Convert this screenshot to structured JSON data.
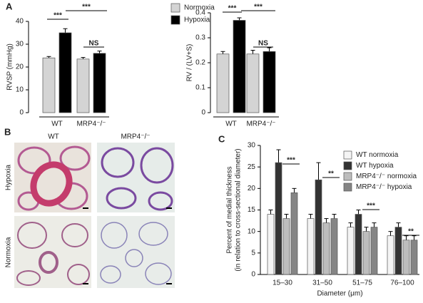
{
  "panel_labels": [
    "A",
    "B",
    "C"
  ],
  "histology": {
    "columns": [
      "WT",
      "MRP4⁻/⁻"
    ],
    "rows": [
      "Hypoxia",
      "Normoxia"
    ]
  },
  "chart_data": [
    {
      "type": "bar",
      "ylabel": "RVSP (mmHg)",
      "categories": [
        "WT",
        "MRP4⁻/⁻"
      ],
      "series": [
        {
          "name": "Normoxia",
          "color": "#d4d4d4",
          "values": [
            24,
            23.5
          ],
          "errors": [
            0.6,
            0.7
          ]
        },
        {
          "name": "Hypoxia",
          "color": "#000000",
          "values": [
            35,
            26
          ],
          "errors": [
            1.8,
            1.0
          ]
        }
      ],
      "ylim": [
        0,
        40
      ],
      "yticks": [
        0,
        10,
        20,
        30,
        40
      ],
      "annotations": [
        "***",
        "***",
        "NS"
      ]
    },
    {
      "type": "bar",
      "ylabel": "RV / (LV+S)",
      "categories": [
        "WT",
        "MRP4⁻/⁻"
      ],
      "series": [
        {
          "color": "#d4d4d4",
          "values": [
            0.235,
            0.235
          ],
          "errors": [
            0.01,
            0.015
          ]
        },
        {
          "color": "#000000",
          "values": [
            0.37,
            0.245
          ],
          "errors": [
            0.01,
            0.015
          ]
        }
      ],
      "ylim": [
        0,
        0.4
      ],
      "yticks": [
        0,
        0.1,
        0.2,
        0.3,
        0.4
      ],
      "annotations": [
        "***",
        "***",
        "NS"
      ]
    },
    {
      "type": "bar",
      "ylabel": [
        "Percent of medial thickness",
        "(in relation to cross-sectional diameter)"
      ],
      "xlabel": "Diameter (μm)",
      "categories": [
        "15–30",
        "31–50",
        "51–75",
        "76–100"
      ],
      "series": [
        {
          "name": "WT normoxia",
          "color": "#f4f4f4",
          "values": [
            14,
            13,
            11,
            9
          ],
          "errors": [
            1,
            1,
            1,
            1
          ]
        },
        {
          "name": "WT hypoxia",
          "color": "#333333",
          "values": [
            26,
            22,
            14,
            11
          ],
          "errors": [
            3,
            4,
            1,
            1
          ]
        },
        {
          "name": "MRP4⁻/⁻ normoxia",
          "color": "#bdbdbd",
          "values": [
            13,
            12,
            10,
            8
          ],
          "errors": [
            1,
            1,
            1,
            1
          ]
        },
        {
          "name": "MRP4⁻/⁻ hypoxia",
          "color": "#858585",
          "values": [
            19,
            13,
            11,
            8
          ],
          "errors": [
            1,
            1,
            1,
            1
          ]
        }
      ],
      "ylim": [
        0,
        30
      ],
      "yticks": [
        0,
        5,
        10,
        15,
        20,
        25,
        30
      ],
      "annotations": [
        "***",
        "**",
        "***",
        "**"
      ]
    }
  ]
}
